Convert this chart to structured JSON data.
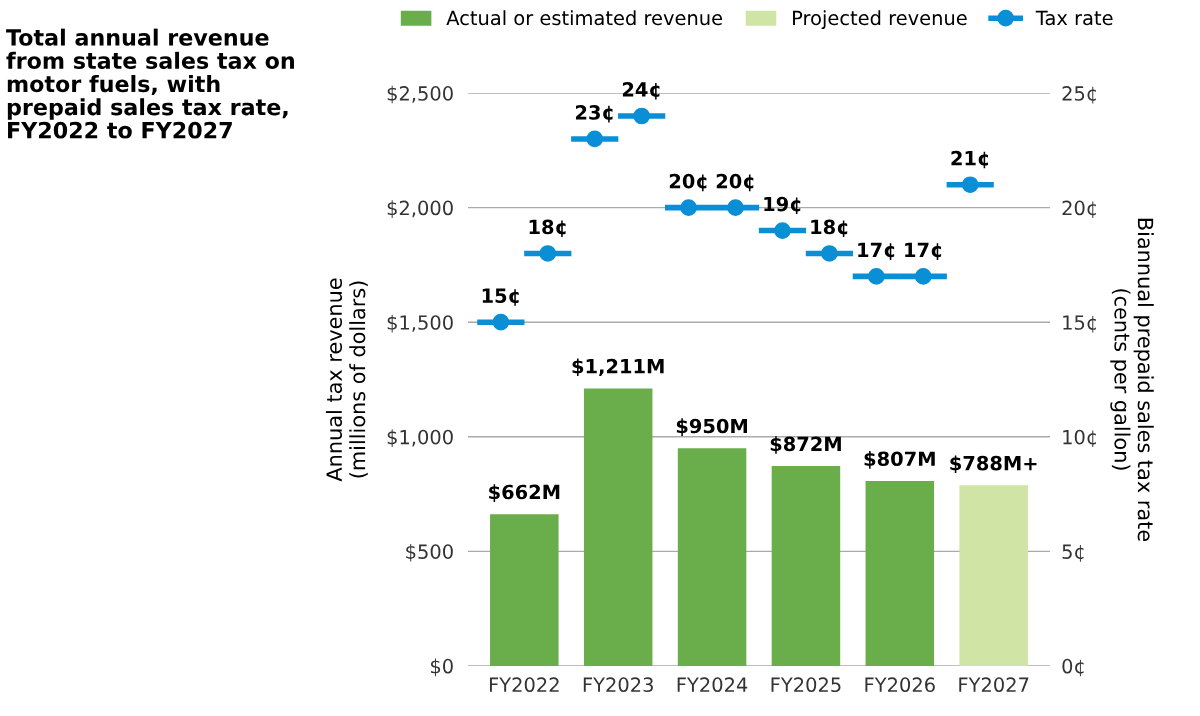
{
  "chart_data": {
    "type": "bar",
    "title": "Total annual revenue\nfrom state sales tax on\nmotor fuels, with\nprepaid sales tax rate,\nFY2022 to FY2027",
    "ylabel": "Annual tax revenue\n(millions of dollars)",
    "y2label": "Biannual prepaid sales tax rate\n(cents per gallon)",
    "categories": [
      "FY2022",
      "FY2023",
      "FY2024",
      "FY2025",
      "FY2026",
      "FY2027"
    ],
    "ylim": [
      0,
      2500
    ],
    "yticks": [
      {
        "value": 0,
        "label": "$0"
      },
      {
        "value": 500,
        "label": "$500"
      },
      {
        "value": 1000,
        "label": "$1,000"
      },
      {
        "value": 1500,
        "label": "$1,500"
      },
      {
        "value": 2000,
        "label": "$2,000"
      },
      {
        "value": 2500,
        "label": "$2,500"
      }
    ],
    "y2lim": [
      0,
      25
    ],
    "y2ticks": [
      {
        "value": 0,
        "label": "0¢"
      },
      {
        "value": 5,
        "label": "5¢"
      },
      {
        "value": 10,
        "label": "10¢"
      },
      {
        "value": 15,
        "label": "15¢"
      },
      {
        "value": 20,
        "label": "20¢"
      },
      {
        "value": 25,
        "label": "25¢"
      }
    ],
    "grid": "y",
    "legend": "top",
    "series": [
      {
        "name": "Actual or estimated revenue",
        "color": "#6aae4c",
        "values": [
          662,
          1211,
          950,
          872,
          807,
          null
        ],
        "value_labels": [
          "$662M",
          "$1,211M",
          "$950M",
          "$872M",
          "$807M",
          null
        ]
      },
      {
        "name": "Projected revenue",
        "color": "#d0e4a6",
        "values": [
          null,
          null,
          null,
          null,
          null,
          788
        ],
        "value_labels": [
          null,
          null,
          null,
          null,
          null,
          "$788M+"
        ]
      },
      {
        "name": "Tax rate",
        "type": "scatter",
        "axis": "y2",
        "color": "#0a8fd6",
        "marker": "circle",
        "values": [
          15,
          23,
          20,
          19,
          17,
          21
        ],
        "value_labels": [
          "15¢",
          "23¢",
          "20¢",
          "19¢",
          "17¢",
          "21¢"
        ]
      },
      {
        "type": "scatter",
        "axis": "y2",
        "color": "#0a8fd6",
        "marker": "circle",
        "values": [
          18,
          24,
          20,
          18,
          17,
          null
        ],
        "value_labels": [
          "18¢",
          "24¢",
          "20¢",
          "18¢",
          "17¢",
          null
        ]
      }
    ]
  }
}
